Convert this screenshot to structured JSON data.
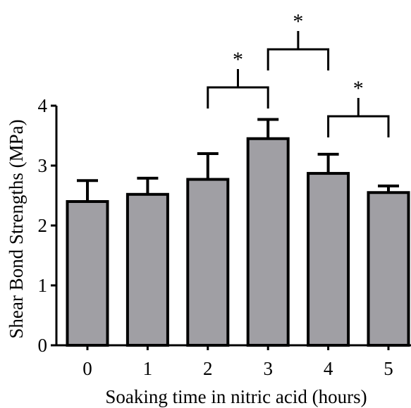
{
  "chart_data": {
    "type": "bar",
    "title": "",
    "xlabel": "Soaking time in nitric acid (hours)",
    "ylabel": "Shear Bond Strengths (MPa)",
    "categories": [
      "0",
      "1",
      "2",
      "3",
      "4",
      "5"
    ],
    "values": [
      2.4,
      2.52,
      2.77,
      3.45,
      2.87,
      2.55
    ],
    "error_plus": [
      0.35,
      0.27,
      0.43,
      0.32,
      0.32,
      0.11
    ],
    "ylim": [
      0,
      4
    ],
    "yticks": [
      "0",
      "1",
      "2",
      "3",
      "4"
    ],
    "grid": false,
    "legend": "none",
    "bar_color": "#a09fa4",
    "edge_color": "#000000",
    "significance": [
      {
        "from": "2",
        "to": "3",
        "label": "*"
      },
      {
        "from": "3",
        "to": "4",
        "label": "*"
      },
      {
        "from": "4",
        "to": "5",
        "label": "*"
      }
    ]
  }
}
